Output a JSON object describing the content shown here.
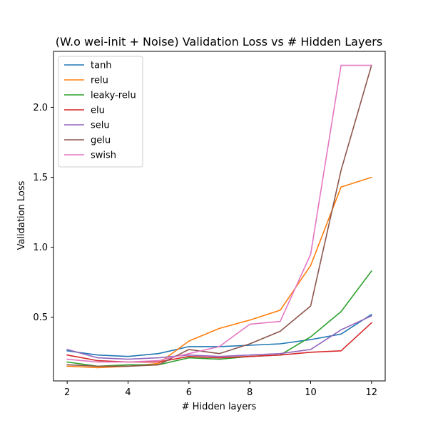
{
  "chart_data": {
    "type": "line",
    "title": "(W.o wei-init + Noise) Validation Loss vs # Hidden Layers",
    "xlabel": "# Hidden layers",
    "ylabel": "Validation Loss",
    "xlim": [
      1.55,
      12.45
    ],
    "ylim": [
      0.045,
      2.4
    ],
    "xticks": [
      2,
      4,
      6,
      8,
      10,
      12
    ],
    "yticks": [
      0.5,
      1.0,
      1.5,
      2.0
    ],
    "ytick_labels": [
      "0.5",
      "1.0",
      "1.5",
      "2.0"
    ],
    "grid": false,
    "legend_position": "top-left",
    "x": [
      2,
      3,
      4,
      5,
      6,
      7,
      8,
      9,
      10,
      11,
      12
    ],
    "series": [
      {
        "name": "tanh",
        "color": "#1f77b4",
        "values": [
          0.26,
          0.23,
          0.22,
          0.24,
          0.29,
          0.29,
          0.3,
          0.31,
          0.34,
          0.38,
          0.52
        ]
      },
      {
        "name": "relu",
        "color": "#ff7f0e",
        "values": [
          0.15,
          0.14,
          0.15,
          0.17,
          0.33,
          0.42,
          0.48,
          0.55,
          0.87,
          1.43,
          1.5
        ]
      },
      {
        "name": "leaky-relu",
        "color": "#2ca02c",
        "values": [
          0.18,
          0.15,
          0.16,
          0.16,
          0.21,
          0.2,
          0.22,
          0.23,
          0.36,
          0.54,
          0.83
        ]
      },
      {
        "name": "elu",
        "color": "#d62728",
        "values": [
          0.23,
          0.19,
          0.18,
          0.18,
          0.22,
          0.21,
          0.22,
          0.23,
          0.25,
          0.26,
          0.46
        ]
      },
      {
        "name": "selu",
        "color": "#9467bd",
        "values": [
          0.27,
          0.21,
          0.2,
          0.21,
          0.23,
          0.22,
          0.23,
          0.24,
          0.27,
          0.41,
          0.51
        ]
      },
      {
        "name": "gelu",
        "color": "#8c564b",
        "values": [
          0.16,
          0.15,
          0.15,
          0.16,
          0.27,
          0.24,
          0.31,
          0.4,
          0.58,
          1.55,
          2.3
        ]
      },
      {
        "name": "swish",
        "color": "#e377c2",
        "values": [
          0.2,
          0.18,
          0.18,
          0.19,
          0.24,
          0.29,
          0.45,
          0.47,
          0.95,
          2.3,
          2.3
        ]
      }
    ]
  }
}
